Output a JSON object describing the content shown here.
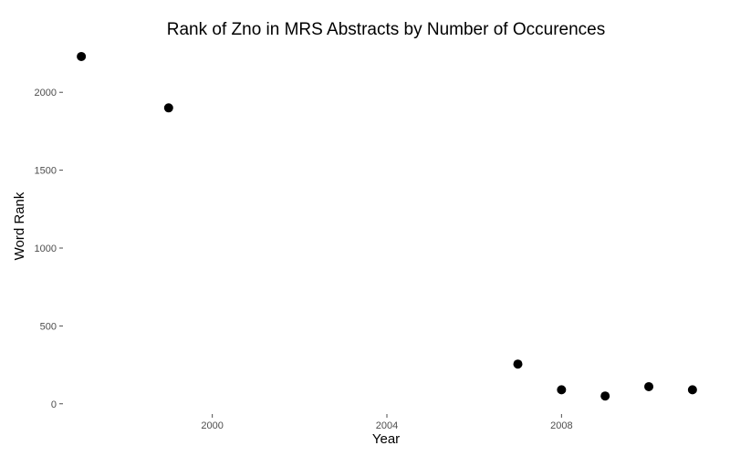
{
  "chart_data": {
    "type": "scatter",
    "title": "Rank of Zno in MRS Abstracts by Number of Occurences",
    "xlabel": "Year",
    "ylabel": "Word Rank",
    "x_ticks": [
      2000,
      2004,
      2008
    ],
    "y_ticks": [
      0,
      500,
      1000,
      1500,
      2000
    ],
    "xlim": [
      1996.6,
      2011.4
    ],
    "ylim": [
      -60,
      2300
    ],
    "grid": false,
    "legend": "none",
    "point_color": "#000000",
    "points": [
      {
        "x": 1997,
        "y": 2230
      },
      {
        "x": 1999,
        "y": 1900
      },
      {
        "x": 2007,
        "y": 255
      },
      {
        "x": 2008,
        "y": 90
      },
      {
        "x": 2009,
        "y": 50
      },
      {
        "x": 2010,
        "y": 110
      },
      {
        "x": 2011,
        "y": 90
      }
    ]
  }
}
